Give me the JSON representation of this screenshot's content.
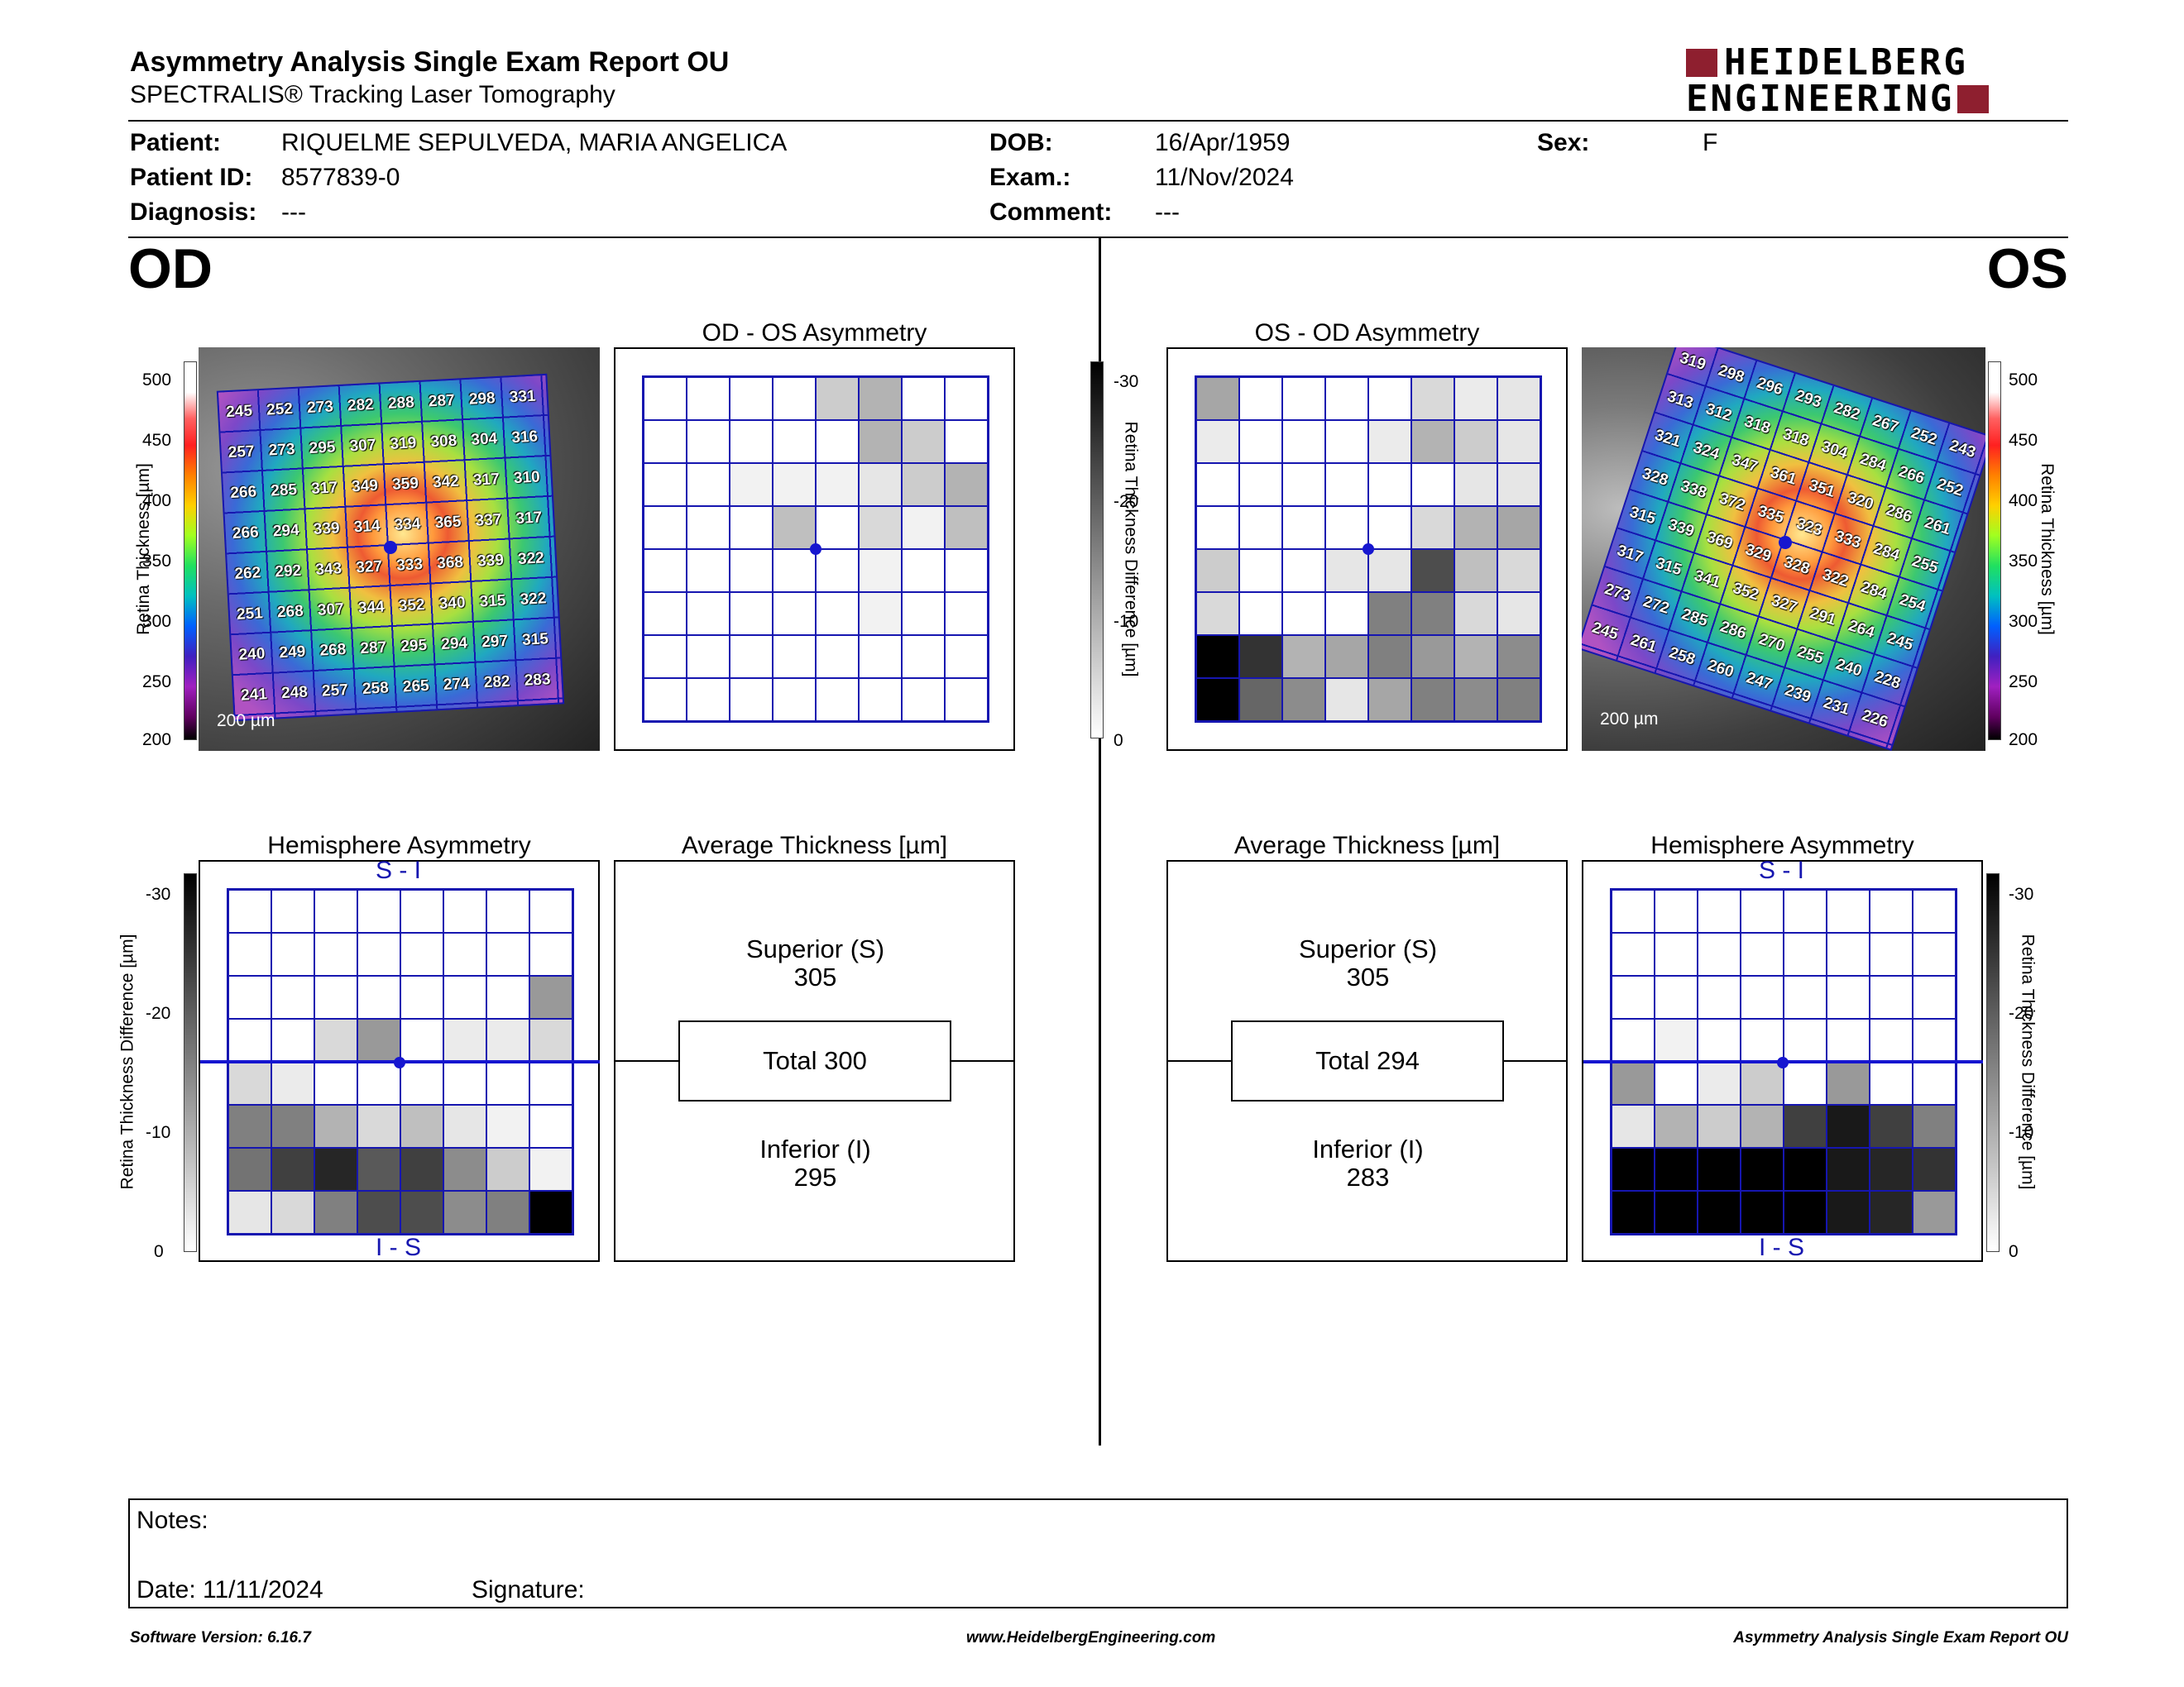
{
  "header": {
    "title": "Asymmetry Analysis Single Exam Report OU",
    "subtitle": "SPECTRALIS® Tracking Laser Tomography",
    "logo_line1": "HEIDELBERG",
    "logo_line2": "ENGINEERING"
  },
  "patient": {
    "patient_label": "Patient:",
    "patient_value": "RIQUELME SEPULVEDA, MARIA ANGELICA",
    "id_label": "Patient ID:",
    "id_value": "8577839-0",
    "diag_label": "Diagnosis:",
    "diag_value": "---",
    "dob_label": "DOB:",
    "dob_value": "16/Apr/1959",
    "exam_label": "Exam.:",
    "exam_value": "11/Nov/2024",
    "comment_label": "Comment:",
    "comment_value": "---",
    "sex_label": "Sex:",
    "sex_value": "F"
  },
  "od": {
    "eye_label": "OD",
    "asym_title": "OD - OS Asymmetry",
    "hemi_title": "Hemisphere Asymmetry",
    "avg_title": "Average Thickness [µm]",
    "scale_label": "200 µm",
    "thickness_axis_label": "Retina Thickness [µm]",
    "diff_axis_label": "Retina Thickness Difference [µm]",
    "thickness_ticks": [
      "500",
      "450",
      "400",
      "350",
      "300",
      "250",
      "200"
    ],
    "diff_ticks": [
      "-30",
      "-20",
      "-10",
      "0"
    ],
    "hemi_top_label": "S - I",
    "hemi_bottom_label": "I - S",
    "superior_label": "Superior (S)",
    "superior_value": "305",
    "total_label": "Total 300",
    "inferior_label": "Inferior (I)",
    "inferior_value": "295",
    "thickness_grid": [
      [
        245,
        252,
        273,
        282,
        288,
        287,
        298,
        331
      ],
      [
        257,
        273,
        295,
        307,
        319,
        308,
        304,
        316
      ],
      [
        266,
        285,
        317,
        349,
        359,
        342,
        317,
        310
      ],
      [
        266,
        294,
        339,
        314,
        334,
        365,
        337,
        317
      ],
      [
        262,
        292,
        343,
        327,
        333,
        368,
        339,
        322
      ],
      [
        251,
        268,
        307,
        344,
        352,
        340,
        315,
        322
      ],
      [
        240,
        249,
        268,
        287,
        295,
        294,
        297,
        315
      ],
      [
        241,
        248,
        257,
        258,
        265,
        274,
        282,
        283
      ]
    ],
    "asym_grid": [
      [
        0,
        0,
        0,
        0,
        0.2,
        0.3,
        0,
        0
      ],
      [
        0,
        0,
        0,
        0,
        0,
        0.3,
        0.2,
        0
      ],
      [
        0,
        0,
        0.05,
        0.05,
        0.05,
        0.1,
        0.2,
        0.3
      ],
      [
        0,
        0,
        0,
        0.25,
        0,
        0.15,
        0.05,
        0.25
      ],
      [
        0,
        0,
        0,
        0,
        0,
        0.05,
        0,
        0
      ],
      [
        0,
        0,
        0,
        0,
        0,
        0.05,
        0,
        0
      ],
      [
        0,
        0,
        0,
        0,
        0,
        0,
        0,
        0
      ],
      [
        0,
        0,
        0,
        0,
        0,
        0,
        0,
        0
      ]
    ],
    "hemi_grid": [
      [
        0,
        0,
        0,
        0,
        0,
        0,
        0,
        0
      ],
      [
        0,
        0,
        0,
        0,
        0,
        0,
        0,
        0
      ],
      [
        0,
        0,
        0,
        0,
        0,
        0,
        0,
        0.4
      ],
      [
        0,
        0,
        0.15,
        0.4,
        0,
        0.08,
        0.08,
        0.15
      ],
      [
        0.15,
        0.08,
        0,
        0,
        0,
        0,
        0,
        0
      ],
      [
        0.5,
        0.5,
        0.3,
        0.15,
        0.25,
        0.1,
        0.05,
        0
      ],
      [
        0.55,
        0.75,
        0.85,
        0.65,
        0.75,
        0.45,
        0.2,
        0.05
      ],
      [
        0.1,
        0.15,
        0.5,
        0.7,
        0.7,
        0.45,
        0.5,
        1
      ]
    ]
  },
  "os": {
    "eye_label": "OS",
    "asym_title": "OS - OD Asymmetry",
    "hemi_title": "Hemisphere Asymmetry",
    "avg_title": "Average Thickness [µm]",
    "scale_label": "200 µm",
    "thickness_axis_label": "Retina Thickness [µm]",
    "diff_axis_label": "Retina Thickness Difference [µm]",
    "thickness_ticks": [
      "500",
      "450",
      "400",
      "350",
      "300",
      "250",
      "200"
    ],
    "diff_ticks": [
      "-30",
      "-20",
      "-10",
      "0"
    ],
    "hemi_top_label": "S - I",
    "hemi_bottom_label": "I - S",
    "superior_label": "Superior (S)",
    "superior_value": "305",
    "total_label": "Total 294",
    "inferior_label": "Inferior (I)",
    "inferior_value": "283",
    "thickness_grid": [
      [
        319,
        298,
        296,
        293,
        282,
        267,
        252,
        243
      ],
      [
        313,
        312,
        318,
        318,
        304,
        284,
        266,
        252
      ],
      [
        321,
        324,
        347,
        361,
        351,
        320,
        286,
        261
      ],
      [
        328,
        338,
        372,
        335,
        323,
        333,
        284,
        255
      ],
      [
        315,
        339,
        369,
        329,
        328,
        322,
        284,
        254
      ],
      [
        317,
        315,
        341,
        352,
        327,
        291,
        264,
        245
      ],
      [
        273,
        272,
        285,
        286,
        270,
        255,
        240,
        228
      ],
      [
        245,
        261,
        258,
        260,
        247,
        239,
        231,
        226
      ]
    ],
    "asym_grid": [
      [
        0.35,
        0,
        0,
        0,
        0,
        0.15,
        0.08,
        0.1
      ],
      [
        0.08,
        0,
        0,
        0,
        0.08,
        0.3,
        0.2,
        0.1
      ],
      [
        0,
        0,
        0,
        0,
        0,
        0,
        0.1,
        0.1
      ],
      [
        0,
        0,
        0,
        0,
        0,
        0.15,
        0.3,
        0.35
      ],
      [
        0.2,
        0,
        0,
        0.1,
        0.1,
        0.7,
        0.25,
        0.15
      ],
      [
        0.15,
        0,
        0,
        0,
        0.5,
        0.5,
        0.15,
        0.1
      ],
      [
        1,
        0.8,
        0.3,
        0.35,
        0.5,
        0.4,
        0.3,
        0.45
      ],
      [
        1,
        0.6,
        0.45,
        0.1,
        0.35,
        0.5,
        0.45,
        0.5
      ]
    ],
    "hemi_grid": [
      [
        0,
        0,
        0,
        0,
        0,
        0,
        0,
        0
      ],
      [
        0,
        0,
        0,
        0,
        0,
        0,
        0,
        0
      ],
      [
        0,
        0,
        0,
        0,
        0,
        0,
        0,
        0
      ],
      [
        0,
        0.05,
        0,
        0,
        0,
        0,
        0,
        0
      ],
      [
        0.4,
        0,
        0.08,
        0.2,
        0,
        0.4,
        0,
        0
      ],
      [
        0.1,
        0.3,
        0.2,
        0.3,
        0.75,
        0.9,
        0.75,
        0.5
      ],
      [
        1,
        1,
        1,
        1,
        1,
        0.9,
        0.85,
        0.8
      ],
      [
        1,
        1,
        1,
        1,
        1,
        0.9,
        0.85,
        0.4
      ]
    ]
  },
  "notes": {
    "notes_label": "Notes:",
    "date_label": "Date: 11/11/2024",
    "signature_label": "Signature:"
  },
  "footer": {
    "software_version": "Software Version: 6.16.7",
    "website": "www.HeidelbergEngineering.com",
    "report_name": "Asymmetry Analysis Single Exam Report OU"
  }
}
